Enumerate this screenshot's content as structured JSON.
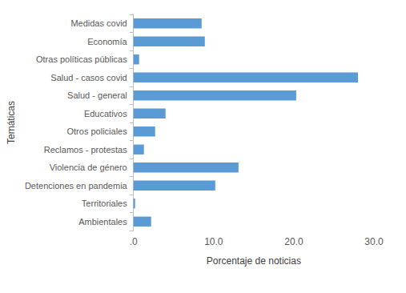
{
  "chart_data": {
    "type": "bar",
    "orientation": "horizontal",
    "categories": [
      "Medidas covid",
      "Economía",
      "Otras políticas públicas",
      "Salud - casos covid",
      "Salud - general",
      "Educativos",
      "Otros policiales",
      "Reclamos - protestas",
      "Violencia de género",
      "Detenciones en pandemia",
      "Territoriales",
      "Ambientales"
    ],
    "values": [
      8.5,
      8.9,
      0.7,
      28.0,
      20.3,
      4.0,
      2.7,
      1.3,
      13.1,
      10.2,
      0.2,
      2.2
    ],
    "color": "#5b9bd5",
    "xlabel": "Porcentaje de noticias",
    "ylabel": "Temáticas",
    "xlim": [
      0,
      30
    ],
    "xticks": [
      {
        "value": 0,
        "label": ".0"
      },
      {
        "value": 10,
        "label": "10.0"
      },
      {
        "value": 20,
        "label": "20.0"
      },
      {
        "value": 30,
        "label": "30.0"
      }
    ],
    "grid": false
  }
}
